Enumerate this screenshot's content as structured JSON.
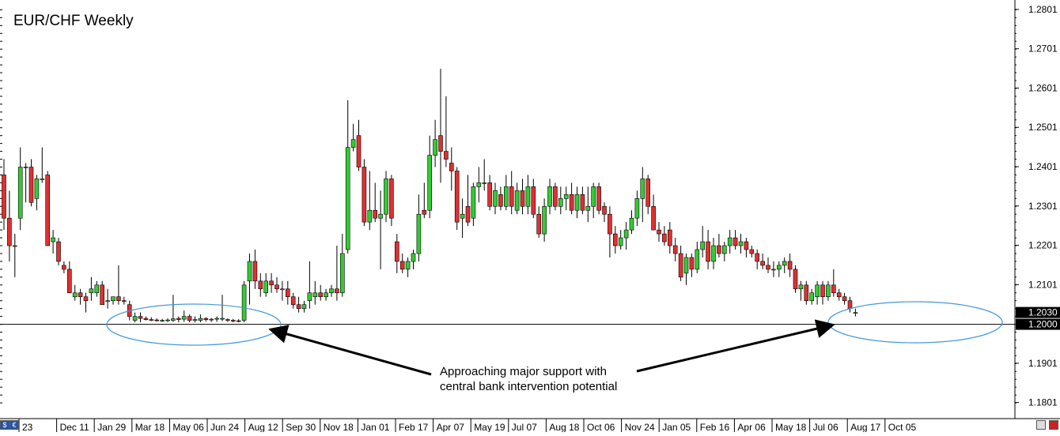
{
  "chart_data": {
    "type": "candlestick",
    "title": "EUR/CHF Weekly",
    "ylim": [
      1.176,
      1.2825
    ],
    "y_ticks": [
      "1.2801",
      "1.2701",
      "1.2601",
      "1.2501",
      "1.2401",
      "1.2301",
      "1.2201",
      "1.2101",
      "1.1901",
      "1.1801"
    ],
    "x_ticks": [
      "23",
      "Dec 11",
      "Jan 29",
      "Mar 18",
      "May 06",
      "Jun 24",
      "Aug 12",
      "Sep 30",
      "Nov 18",
      "Jan 01",
      "Feb 17",
      "Apr 07",
      "May 19",
      "Jul 07",
      "Aug 18",
      "Oct 06",
      "Nov 24",
      "Jan 05",
      "Feb 16",
      "Apr 06",
      "May 18",
      "Jul 06",
      "Aug 17",
      "Oct 05"
    ],
    "support_level": 1.2,
    "support_label": "1.2000",
    "current_price_label": "1.2030",
    "annotation": [
      "Approaching major support with",
      "central bank intervention potential"
    ],
    "colors": {
      "bull": "#33cc33",
      "bear": "#e03030",
      "ellipse": "#4499dd",
      "support_line": "#000000",
      "price_tag": "#000000"
    },
    "candles": [
      [
        1.238,
        1.242,
        1.224,
        1.227
      ],
      [
        1.227,
        1.234,
        1.216,
        1.22
      ],
      [
        1.22,
        1.223,
        1.212,
        1.22
      ],
      [
        1.227,
        1.245,
        1.224,
        1.24
      ],
      [
        1.24,
        1.241,
        1.231,
        1.24
      ],
      [
        1.24,
        1.242,
        1.23,
        1.231
      ],
      [
        1.232,
        1.238,
        1.229,
        1.237
      ],
      [
        1.237,
        1.245,
        1.236,
        1.237
      ],
      [
        1.238,
        1.239,
        1.22,
        1.22
      ],
      [
        1.221,
        1.224,
        1.218,
        1.222
      ],
      [
        1.221,
        1.222,
        1.215,
        1.216
      ],
      [
        1.215,
        1.216,
        1.213,
        1.214
      ],
      [
        1.214,
        1.216,
        1.208,
        1.208
      ],
      [
        1.207,
        1.21,
        1.206,
        1.208
      ],
      [
        1.208,
        1.209,
        1.205,
        1.207
      ],
      [
        1.207,
        1.208,
        1.203,
        1.206
      ],
      [
        1.208,
        1.212,
        1.206,
        1.209
      ],
      [
        1.208,
        1.211,
        1.207,
        1.21
      ],
      [
        1.21,
        1.211,
        1.205,
        1.205
      ],
      [
        1.206,
        1.209,
        1.204,
        1.206
      ],
      [
        1.206,
        1.207,
        1.205,
        1.207
      ],
      [
        1.207,
        1.215,
        1.205,
        1.206
      ],
      [
        1.206,
        1.207,
        1.205,
        1.206
      ],
      [
        1.205,
        1.206,
        1.201,
        1.202
      ],
      [
        1.201,
        1.203,
        1.2005,
        1.202
      ],
      [
        1.202,
        1.203,
        1.2005,
        1.2015
      ],
      [
        1.2015,
        1.202,
        1.201,
        1.2012
      ],
      [
        1.2012,
        1.2018,
        1.2008,
        1.2011
      ],
      [
        1.2011,
        1.2015,
        1.2007,
        1.201
      ],
      [
        1.201,
        1.2014,
        1.2006,
        1.201
      ],
      [
        1.201,
        1.2015,
        1.2006,
        1.2011
      ],
      [
        1.201,
        1.2075,
        1.2006,
        1.2014
      ],
      [
        1.2015,
        1.202,
        1.2005,
        1.2012
      ],
      [
        1.2013,
        1.2035,
        1.2006,
        1.202
      ],
      [
        1.202,
        1.2025,
        1.2005,
        1.201
      ],
      [
        1.201,
        1.202,
        1.2005,
        1.2012
      ],
      [
        1.201,
        1.2025,
        1.2005,
        1.2015
      ],
      [
        1.2015,
        1.2018,
        1.2007,
        1.2012
      ],
      [
        1.2012,
        1.2016,
        1.2006,
        1.2013
      ],
      [
        1.2013,
        1.202,
        1.2006,
        1.2015
      ],
      [
        1.2015,
        1.2075,
        1.2008,
        1.2015
      ],
      [
        1.2012,
        1.2015,
        1.2006,
        1.201
      ],
      [
        1.201,
        1.2014,
        1.2005,
        1.2009
      ],
      [
        1.2009,
        1.2013,
        1.2005,
        1.2008
      ],
      [
        1.201,
        1.211,
        1.2005,
        1.21
      ],
      [
        1.211,
        1.218,
        1.205,
        1.216
      ],
      [
        1.216,
        1.219,
        1.209,
        1.211
      ],
      [
        1.211,
        1.213,
        1.207,
        1.209
      ],
      [
        1.208,
        1.213,
        1.207,
        1.211
      ],
      [
        1.211,
        1.213,
        1.208,
        1.21
      ],
      [
        1.21,
        1.212,
        1.208,
        1.209
      ],
      [
        1.209,
        1.211,
        1.206,
        1.209
      ],
      [
        1.209,
        1.211,
        1.205,
        1.207
      ],
      [
        1.207,
        1.208,
        1.204,
        1.205
      ],
      [
        1.205,
        1.207,
        1.203,
        1.204
      ],
      [
        1.204,
        1.206,
        1.203,
        1.205
      ],
      [
        1.206,
        1.216,
        1.204,
        1.208
      ],
      [
        1.207,
        1.211,
        1.205,
        1.208
      ],
      [
        1.208,
        1.21,
        1.206,
        1.207
      ],
      [
        1.207,
        1.209,
        1.206,
        1.208
      ],
      [
        1.208,
        1.21,
        1.207,
        1.209
      ],
      [
        1.209,
        1.22,
        1.206,
        1.208
      ],
      [
        1.208,
        1.223,
        1.207,
        1.218
      ],
      [
        1.219,
        1.257,
        1.218,
        1.245
      ],
      [
        1.245,
        1.251,
        1.244,
        1.247
      ],
      [
        1.248,
        1.252,
        1.239,
        1.24
      ],
      [
        1.24,
        1.242,
        1.225,
        1.226
      ],
      [
        1.226,
        1.239,
        1.224,
        1.229
      ],
      [
        1.229,
        1.236,
        1.226,
        1.227
      ],
      [
        1.227,
        1.234,
        1.214,
        1.228
      ],
      [
        1.228,
        1.239,
        1.226,
        1.237
      ],
      [
        1.237,
        1.238,
        1.225,
        1.227
      ],
      [
        1.221,
        1.223,
        1.213,
        1.216
      ],
      [
        1.216,
        1.218,
        1.213,
        1.214
      ],
      [
        1.214,
        1.217,
        1.212,
        1.216
      ],
      [
        1.216,
        1.219,
        1.214,
        1.218
      ],
      [
        1.218,
        1.233,
        1.216,
        1.228
      ],
      [
        1.229,
        1.236,
        1.227,
        1.228
      ],
      [
        1.229,
        1.248,
        1.227,
        1.243
      ],
      [
        1.243,
        1.252,
        1.24,
        1.247
      ],
      [
        1.248,
        1.265,
        1.236,
        1.244
      ],
      [
        1.244,
        1.258,
        1.24,
        1.242
      ],
      [
        1.241,
        1.245,
        1.234,
        1.239
      ],
      [
        1.239,
        1.24,
        1.224,
        1.226
      ],
      [
        1.227,
        1.232,
        1.222,
        1.228
      ],
      [
        1.23,
        1.238,
        1.225,
        1.226
      ],
      [
        1.227,
        1.236,
        1.225,
        1.235
      ],
      [
        1.235,
        1.24,
        1.231,
        1.236
      ],
      [
        1.236,
        1.242,
        1.234,
        1.236
      ],
      [
        1.236,
        1.238,
        1.229,
        1.23
      ],
      [
        1.23,
        1.236,
        1.228,
        1.234
      ],
      [
        1.233,
        1.235,
        1.229,
        1.23
      ],
      [
        1.23,
        1.238,
        1.229,
        1.235
      ],
      [
        1.235,
        1.239,
        1.228,
        1.23
      ],
      [
        1.229,
        1.236,
        1.228,
        1.234
      ],
      [
        1.234,
        1.237,
        1.228,
        1.23
      ],
      [
        1.23,
        1.238,
        1.228,
        1.235
      ],
      [
        1.235,
        1.237,
        1.227,
        1.228
      ],
      [
        1.228,
        1.23,
        1.222,
        1.223
      ],
      [
        1.223,
        1.232,
        1.221,
        1.23
      ],
      [
        1.23,
        1.237,
        1.228,
        1.235
      ],
      [
        1.235,
        1.236,
        1.229,
        1.23
      ],
      [
        1.23,
        1.235,
        1.228,
        1.232
      ],
      [
        1.232,
        1.235,
        1.229,
        1.233
      ],
      [
        1.233,
        1.236,
        1.228,
        1.229
      ],
      [
        1.229,
        1.235,
        1.227,
        1.233
      ],
      [
        1.233,
        1.235,
        1.228,
        1.229
      ],
      [
        1.229,
        1.235,
        1.226,
        1.23
      ],
      [
        1.23,
        1.236,
        1.227,
        1.235
      ],
      [
        1.235,
        1.236,
        1.228,
        1.229
      ],
      [
        1.23,
        1.231,
        1.226,
        1.228
      ],
      [
        1.228,
        1.23,
        1.217,
        1.223
      ],
      [
        1.223,
        1.225,
        1.218,
        1.22
      ],
      [
        1.22,
        1.224,
        1.219,
        1.222
      ],
      [
        1.222,
        1.226,
        1.219,
        1.224
      ],
      [
        1.224,
        1.229,
        1.223,
        1.227
      ],
      [
        1.227,
        1.234,
        1.225,
        1.232
      ],
      [
        1.232,
        1.24,
        1.226,
        1.237
      ],
      [
        1.237,
        1.238,
        1.228,
        1.23
      ],
      [
        1.23,
        1.233,
        1.224,
        1.224
      ],
      [
        1.224,
        1.226,
        1.221,
        1.223
      ],
      [
        1.223,
        1.225,
        1.22,
        1.221
      ],
      [
        1.224,
        1.226,
        1.218,
        1.22
      ],
      [
        1.22,
        1.222,
        1.216,
        1.218
      ],
      [
        1.218,
        1.22,
        1.211,
        1.212
      ],
      [
        1.213,
        1.218,
        1.21,
        1.217
      ],
      [
        1.217,
        1.218,
        1.212,
        1.214
      ],
      [
        1.214,
        1.221,
        1.213,
        1.219
      ],
      [
        1.219,
        1.225,
        1.217,
        1.221
      ],
      [
        1.221,
        1.224,
        1.214,
        1.216
      ],
      [
        1.216,
        1.222,
        1.214,
        1.22
      ],
      [
        1.22,
        1.223,
        1.217,
        1.218
      ],
      [
        1.218,
        1.221,
        1.216,
        1.22
      ],
      [
        1.22,
        1.224,
        1.218,
        1.222
      ],
      [
        1.222,
        1.224,
        1.219,
        1.22
      ],
      [
        1.22,
        1.223,
        1.218,
        1.221
      ],
      [
        1.221,
        1.222,
        1.217,
        1.219
      ],
      [
        1.219,
        1.22,
        1.217,
        1.218
      ],
      [
        1.218,
        1.219,
        1.214,
        1.216
      ],
      [
        1.216,
        1.218,
        1.214,
        1.215
      ],
      [
        1.215,
        1.217,
        1.213,
        1.214
      ],
      [
        1.214,
        1.216,
        1.212,
        1.214
      ],
      [
        1.214,
        1.216,
        1.212,
        1.215
      ],
      [
        1.215,
        1.217,
        1.213,
        1.216
      ],
      [
        1.216,
        1.218,
        1.212,
        1.214
      ],
      [
        1.214,
        1.215,
        1.208,
        1.209
      ],
      [
        1.209,
        1.211,
        1.206,
        1.21
      ],
      [
        1.21,
        1.211,
        1.205,
        1.206
      ],
      [
        1.206,
        1.209,
        1.205,
        1.208
      ],
      [
        1.207,
        1.211,
        1.205,
        1.21
      ],
      [
        1.21,
        1.211,
        1.205,
        1.207
      ],
      [
        1.207,
        1.211,
        1.206,
        1.21
      ],
      [
        1.21,
        1.214,
        1.207,
        1.208
      ],
      [
        1.208,
        1.209,
        1.206,
        1.207
      ],
      [
        1.207,
        1.208,
        1.205,
        1.206
      ],
      [
        1.206,
        1.207,
        1.203,
        1.204
      ],
      [
        1.203,
        1.204,
        1.202,
        1.203
      ]
    ]
  },
  "footer": {
    "icon_left": "$",
    "icon_left2": "€",
    "icon_right_names": [
      "scroll-chart-icon",
      "autoscroll-icon"
    ]
  }
}
